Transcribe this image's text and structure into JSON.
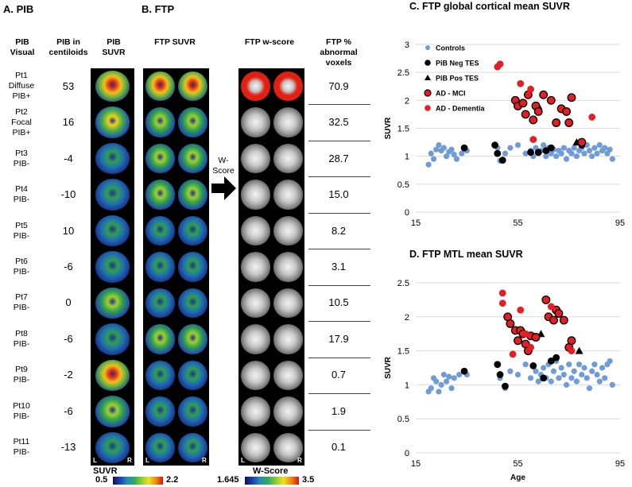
{
  "panel_a": {
    "title": "A.  PIB",
    "headers": {
      "visual": "PIB\nVisual",
      "centiloids": "PIB in\ncentiloids",
      "suvr": "PIB\nSUVR"
    },
    "patients": [
      {
        "label": "Pt1\nDiffuse\nPIB+",
        "centiloid": "53"
      },
      {
        "label": "Pt2\nFocal\nPIB+",
        "centiloid": "16"
      },
      {
        "label": "Pt3\nPIB-",
        "centiloid": "-4"
      },
      {
        "label": "Pt4\nPIB-",
        "centiloid": "-10"
      },
      {
        "label": "Pt5\nPIB-",
        "centiloid": "10"
      },
      {
        "label": "Pt6\nPIB-",
        "centiloid": "-6"
      },
      {
        "label": "Pt7\nPIB-",
        "centiloid": "0"
      },
      {
        "label": "Pt8\nPIB-",
        "centiloid": "-6"
      },
      {
        "label": "Pt9\nPIB-",
        "centiloid": "-2"
      },
      {
        "label": "Pt10\nPIB-",
        "centiloid": "-6"
      },
      {
        "label": "Pt11\nPIB-",
        "centiloid": "-13"
      }
    ],
    "colorbar": {
      "min": "0.5",
      "label": "SUVR",
      "max": "2.2"
    },
    "lr": {
      "left": "L",
      "right": "R"
    }
  },
  "panel_b": {
    "title": "B.  FTP",
    "headers": {
      "suvr": "FTP SUVR",
      "wscore": "FTP w-score",
      "abnormal": "FTP %\nabnormal\nvoxels"
    },
    "arrow_label": "W-\nScore",
    "abnormal_values": [
      "70.9",
      "32.5",
      "28.7",
      "15.0",
      "8.2",
      "3.1",
      "10.5",
      "17.9",
      "0.7",
      "1.9",
      "0.1"
    ],
    "colorbar": {
      "min": "1.645",
      "label": "W-Score",
      "max": "3.5"
    },
    "lr": {
      "left": "L",
      "right": "R"
    }
  },
  "chart_data": [
    {
      "type": "scatter",
      "title": "C.  FTP global cortical mean SUVR",
      "xlabel": "",
      "ylabel": "SUVR",
      "xlim": [
        15,
        95
      ],
      "ylim": [
        0,
        3
      ],
      "xticks": [
        "15",
        "55",
        "95"
      ],
      "yticks": [
        "0",
        "0.5",
        "1",
        "1.5",
        "2",
        "2.5",
        "3"
      ],
      "grid": "horizontal",
      "legend_position": "top-right",
      "legend": [
        "Controls",
        "PiB Neg TES",
        "PiB Pos TES",
        "AD - MCI",
        "AD - Dementia"
      ],
      "series": [
        {
          "name": "Controls",
          "color": "#6f9bd8",
          "marker": "circle",
          "points": [
            [
              20,
              0.85
            ],
            [
              22,
              0.95
            ],
            [
              23,
              1.12
            ],
            [
              21,
              1.05
            ],
            [
              24,
              1.2
            ],
            [
              25,
              1.1
            ],
            [
              26,
              1.15
            ],
            [
              27,
              1.0
            ],
            [
              28,
              1.08
            ],
            [
              29,
              1.12
            ],
            [
              30,
              1.03
            ],
            [
              31,
              0.95
            ],
            [
              33,
              1.05
            ],
            [
              35,
              1.1
            ],
            [
              47,
              1.15
            ],
            [
              48,
              0.92
            ],
            [
              50,
              1.05
            ],
            [
              52,
              1.15
            ],
            [
              55,
              1.2
            ],
            [
              58,
              1.05
            ],
            [
              60,
              1.1
            ],
            [
              61,
              1.0
            ],
            [
              62,
              1.15
            ],
            [
              63,
              1.05
            ],
            [
              64,
              1.1
            ],
            [
              65,
              1.2
            ],
            [
              66,
              1.0
            ],
            [
              67,
              1.15
            ],
            [
              68,
              1.05
            ],
            [
              69,
              1.12
            ],
            [
              70,
              1.0
            ],
            [
              71,
              1.1
            ],
            [
              72,
              1.05
            ],
            [
              73,
              1.15
            ],
            [
              74,
              0.95
            ],
            [
              75,
              1.1
            ],
            [
              76,
              1.05
            ],
            [
              77,
              1.15
            ],
            [
              78,
              1.0
            ],
            [
              79,
              1.1
            ],
            [
              80,
              1.15
            ],
            [
              81,
              1.05
            ],
            [
              82,
              1.2
            ],
            [
              83,
              1.1
            ],
            [
              84,
              1.0
            ],
            [
              85,
              1.15
            ],
            [
              86,
              1.05
            ],
            [
              87,
              1.2
            ],
            [
              88,
              1.1
            ],
            [
              89,
              1.15
            ],
            [
              90,
              1.05
            ],
            [
              91,
              1.12
            ],
            [
              92,
              0.95
            ]
          ]
        },
        {
          "name": "PiB Neg TES",
          "color": "#000000",
          "marker": "circle",
          "points": [
            [
              34,
              1.15
            ],
            [
              46,
              1.2
            ],
            [
              47,
              1.05
            ],
            [
              49,
              0.93
            ],
            [
              60,
              1.07
            ],
            [
              63,
              1.07
            ],
            [
              66,
              1.1
            ],
            [
              68,
              1.15
            ],
            [
              80,
              1.2
            ]
          ]
        },
        {
          "name": "PiB Pos TES",
          "color": "#000000",
          "marker": "triangle",
          "points": [
            [
              63,
              1.9
            ],
            [
              78,
              1.25
            ]
          ]
        },
        {
          "name": "AD - MCI",
          "color": "#e31e25",
          "marker": "circle-outlined",
          "points": [
            [
              54,
              2.0
            ],
            [
              55,
              1.9
            ],
            [
              57,
              1.95
            ],
            [
              58,
              1.75
            ],
            [
              59,
              2.1
            ],
            [
              61,
              1.65
            ],
            [
              62,
              1.9
            ],
            [
              63,
              1.8
            ],
            [
              65,
              2.1
            ],
            [
              68,
              2.0
            ],
            [
              70,
              1.6
            ],
            [
              72,
              1.85
            ],
            [
              74,
              1.8
            ],
            [
              75,
              1.6
            ],
            [
              76,
              2.05
            ],
            [
              80,
              1.25
            ]
          ]
        },
        {
          "name": "AD - Dementia",
          "color": "#e31e25",
          "marker": "circle",
          "points": [
            [
              47,
              2.6
            ],
            [
              48,
              2.65
            ],
            [
              56,
              2.3
            ],
            [
              60,
              2.2
            ],
            [
              61,
              1.3
            ],
            [
              84,
              1.7
            ]
          ]
        }
      ]
    },
    {
      "type": "scatter",
      "title": "D.  FTP MTL mean SUVR",
      "xlabel": "Age",
      "ylabel": "SUVR",
      "xlim": [
        15,
        95
      ],
      "ylim": [
        0,
        2.5
      ],
      "xticks": [
        "15",
        "55",
        "95"
      ],
      "yticks": [
        "0",
        "0.5",
        "1",
        "1.5",
        "2",
        "2.5"
      ],
      "grid": "horizontal",
      "series": [
        {
          "name": "Controls",
          "color": "#6f9bd8",
          "marker": "circle",
          "points": [
            [
              20,
              0.9
            ],
            [
              21,
              0.95
            ],
            [
              22,
              1.1
            ],
            [
              23,
              1.05
            ],
            [
              24,
              0.9
            ],
            [
              25,
              1.0
            ],
            [
              26,
              1.15
            ],
            [
              27,
              1.05
            ],
            [
              28,
              1.12
            ],
            [
              29,
              0.95
            ],
            [
              30,
              1.1
            ],
            [
              32,
              1.15
            ],
            [
              35,
              1.15
            ],
            [
              48,
              1.1
            ],
            [
              50,
              0.95
            ],
            [
              52,
              1.2
            ],
            [
              55,
              1.15
            ],
            [
              58,
              1.3
            ],
            [
              60,
              1.1
            ],
            [
              62,
              1.2
            ],
            [
              63,
              1.05
            ],
            [
              64,
              1.15
            ],
            [
              65,
              1.25
            ],
            [
              66,
              1.1
            ],
            [
              67,
              1.3
            ],
            [
              68,
              1.05
            ],
            [
              69,
              1.2
            ],
            [
              70,
              1.35
            ],
            [
              71,
              1.1
            ],
            [
              72,
              1.25
            ],
            [
              73,
              1.15
            ],
            [
              74,
              1.0
            ],
            [
              75,
              1.3
            ],
            [
              76,
              1.1
            ],
            [
              77,
              1.2
            ],
            [
              78,
              1.05
            ],
            [
              79,
              1.3
            ],
            [
              80,
              1.15
            ],
            [
              81,
              1.25
            ],
            [
              82,
              1.1
            ],
            [
              83,
              0.95
            ],
            [
              84,
              1.2
            ],
            [
              85,
              1.3
            ],
            [
              86,
              1.15
            ],
            [
              87,
              1.05
            ],
            [
              88,
              1.25
            ],
            [
              89,
              1.1
            ],
            [
              90,
              1.3
            ],
            [
              91,
              1.35
            ],
            [
              92,
              1.0
            ]
          ]
        },
        {
          "name": "PiB Neg TES",
          "color": "#000000",
          "marker": "circle",
          "points": [
            [
              34,
              1.2
            ],
            [
              47,
              1.3
            ],
            [
              48,
              1.15
            ],
            [
              50,
              0.98
            ],
            [
              61,
              1.28
            ],
            [
              65,
              1.1
            ],
            [
              68,
              1.35
            ],
            [
              70,
              1.4
            ]
          ]
        },
        {
          "name": "PiB Pos TES",
          "color": "#000000",
          "marker": "triangle",
          "points": [
            [
              64,
              1.75
            ],
            [
              79,
              1.5
            ]
          ]
        },
        {
          "name": "AD - MCI",
          "color": "#e31e25",
          "marker": "circle-outlined",
          "points": [
            [
              51,
              2.0
            ],
            [
              52,
              1.9
            ],
            [
              54,
              1.8
            ],
            [
              55,
              1.65
            ],
            [
              56,
              1.8
            ],
            [
              57,
              1.75
            ],
            [
              58,
              1.6
            ],
            [
              59,
              1.5
            ],
            [
              60,
              1.72
            ],
            [
              62,
              1.7
            ],
            [
              66,
              2.25
            ],
            [
              67,
              2.0
            ],
            [
              69,
              1.95
            ],
            [
              70,
              2.1
            ],
            [
              71,
              2.05
            ],
            [
              73,
              1.95
            ],
            [
              75,
              1.55
            ],
            [
              76,
              1.65
            ]
          ]
        },
        {
          "name": "AD - Dementia",
          "color": "#e31e25",
          "marker": "circle",
          "points": [
            [
              49,
              2.2
            ],
            [
              49,
              2.35
            ],
            [
              53,
              1.45
            ],
            [
              56,
              2.1
            ],
            [
              58,
              1.75
            ],
            [
              60,
              1.55
            ],
            [
              68,
              2.15
            ],
            [
              76,
              1.5
            ]
          ]
        }
      ]
    }
  ]
}
